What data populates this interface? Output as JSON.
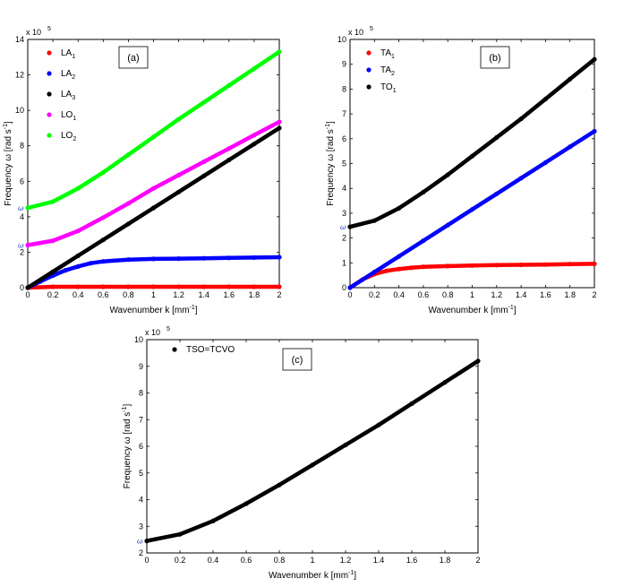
{
  "chart_data": [
    {
      "type": "scatter",
      "panel_label": "(a)",
      "multiplier_label": "x 10",
      "multiplier_exp": "5",
      "xlabel": "Wavenumber k [mm",
      "xlabel_sup": "-1",
      "xlabel_end": "]",
      "ylabel": "Frequency  ω [rad s",
      "ylabel_sup": "-1",
      "ylabel_end": "]",
      "xlim": [
        0,
        2
      ],
      "ylim": [
        0,
        14
      ],
      "xticks": [
        "0",
        "0.2",
        "0.4",
        "0.6",
        "0.8",
        "1",
        "1.2",
        "1.4",
        "1.6",
        "1.8",
        "2"
      ],
      "yticks": [
        "0",
        "2",
        "4",
        "6",
        "8",
        "10",
        "12",
        "14"
      ],
      "omega_marks": [
        {
          "label": "ω",
          "y": 2.4
        },
        {
          "label": "ω",
          "y": 4.5
        }
      ],
      "series": [
        {
          "name": "LA",
          "sub": "1",
          "color": "#ff0000",
          "x": [
            0,
            0.2,
            0.4,
            0.6,
            0.8,
            1.0,
            1.2,
            1.4,
            1.6,
            1.8,
            2.0
          ],
          "y": [
            0,
            0.05,
            0.05,
            0.05,
            0.05,
            0.05,
            0.05,
            0.05,
            0.05,
            0.05,
            0.05
          ]
        },
        {
          "name": "LA",
          "sub": "2",
          "color": "#0000ff",
          "x": [
            0,
            0.1,
            0.2,
            0.3,
            0.4,
            0.5,
            0.6,
            0.8,
            1.0,
            1.2,
            1.4,
            1.6,
            1.8,
            2.0
          ],
          "y": [
            0,
            0.35,
            0.68,
            0.98,
            1.2,
            1.38,
            1.48,
            1.58,
            1.62,
            1.64,
            1.66,
            1.68,
            1.7,
            1.72
          ]
        },
        {
          "name": "LA",
          "sub": "3",
          "color": "#000000",
          "x": [
            0,
            0.2,
            0.4,
            0.6,
            0.8,
            1.0,
            1.2,
            1.4,
            1.6,
            1.8,
            2.0
          ],
          "y": [
            0,
            0.9,
            1.8,
            2.7,
            3.6,
            4.5,
            5.4,
            6.3,
            7.2,
            8.1,
            9.0
          ]
        },
        {
          "name": "LO",
          "sub": "1",
          "color": "#ff00ff",
          "x": [
            0,
            0.2,
            0.4,
            0.6,
            0.8,
            1.0,
            1.2,
            1.4,
            1.6,
            1.8,
            2.0
          ],
          "y": [
            2.4,
            2.65,
            3.2,
            3.95,
            4.75,
            5.6,
            6.35,
            7.1,
            7.85,
            8.6,
            9.35
          ]
        },
        {
          "name": "LO",
          "sub": "2",
          "color": "#00ff00",
          "x": [
            0,
            0.2,
            0.4,
            0.6,
            0.8,
            1.0,
            1.2,
            1.4,
            1.6,
            1.8,
            2.0
          ],
          "y": [
            4.5,
            4.85,
            5.6,
            6.5,
            7.5,
            8.5,
            9.5,
            10.45,
            11.4,
            12.35,
            13.3
          ]
        }
      ]
    },
    {
      "type": "scatter",
      "panel_label": "(b)",
      "multiplier_label": "x 10",
      "multiplier_exp": "5",
      "xlabel": "Wavenumber k [mm",
      "xlabel_sup": "-1",
      "xlabel_end": "]",
      "ylabel": "Frequency  ω [rad s",
      "ylabel_sup": "-1",
      "ylabel_end": "]",
      "xlim": [
        0,
        2
      ],
      "ylim": [
        0,
        10
      ],
      "xticks": [
        "0",
        "0.2",
        "0.4",
        "0.6",
        "0.8",
        "1",
        "1.2",
        "1.4",
        "1.6",
        "1.8",
        "2"
      ],
      "yticks": [
        "0",
        "1",
        "2",
        "3",
        "4",
        "5",
        "6",
        "7",
        "8",
        "9",
        "10"
      ],
      "omega_marks": [
        {
          "label": "ω",
          "y": 2.45
        }
      ],
      "series": [
        {
          "name": "TA",
          "sub": "1",
          "color": "#ff0000",
          "x": [
            0,
            0.1,
            0.2,
            0.3,
            0.4,
            0.5,
            0.6,
            0.8,
            1.0,
            1.2,
            1.4,
            1.6,
            1.8,
            2.0
          ],
          "y": [
            0,
            0.32,
            0.55,
            0.68,
            0.75,
            0.8,
            0.84,
            0.87,
            0.89,
            0.91,
            0.92,
            0.93,
            0.95,
            0.96
          ]
        },
        {
          "name": "TA",
          "sub": "2",
          "color": "#0000ff",
          "x": [
            0,
            0.2,
            0.4,
            0.6,
            0.8,
            1.0,
            1.2,
            1.4,
            1.6,
            1.8,
            2.0
          ],
          "y": [
            0,
            0.63,
            1.26,
            1.89,
            2.52,
            3.15,
            3.78,
            4.41,
            5.04,
            5.67,
            6.3
          ]
        },
        {
          "name": "TO",
          "sub": "1",
          "color": "#000000",
          "x": [
            0,
            0.2,
            0.4,
            0.6,
            0.8,
            1.0,
            1.2,
            1.4,
            1.6,
            1.8,
            2.0
          ],
          "y": [
            2.45,
            2.7,
            3.2,
            3.85,
            4.55,
            5.3,
            6.05,
            6.8,
            7.6,
            8.4,
            9.2
          ]
        }
      ]
    },
    {
      "type": "scatter",
      "panel_label": "(c)",
      "multiplier_label": "x 10",
      "multiplier_exp": "5",
      "xlabel": "Wavenumber k [mm",
      "xlabel_sup": "-1",
      "xlabel_end": "]",
      "ylabel": "Frequency  ω [rad s",
      "ylabel_sup": "-1",
      "ylabel_end": "]",
      "xlim": [
        0,
        2
      ],
      "ylim": [
        2,
        10
      ],
      "xticks": [
        "0",
        "0.2",
        "0.4",
        "0.6",
        "0.8",
        "1",
        "1.2",
        "1.4",
        "1.6",
        "1.8",
        "2"
      ],
      "yticks": [
        "2",
        "3",
        "4",
        "5",
        "6",
        "7",
        "8",
        "9",
        "10"
      ],
      "omega_marks": [
        {
          "label": "ω",
          "y": 2.45
        }
      ],
      "series": [
        {
          "name": "TSO=TCVO",
          "sub": "",
          "color": "#000000",
          "x": [
            0,
            0.2,
            0.4,
            0.6,
            0.8,
            1.0,
            1.2,
            1.4,
            1.6,
            1.8,
            2.0
          ],
          "y": [
            2.45,
            2.7,
            3.2,
            3.85,
            4.55,
            5.3,
            6.05,
            6.8,
            7.6,
            8.4,
            9.2
          ]
        }
      ]
    }
  ]
}
